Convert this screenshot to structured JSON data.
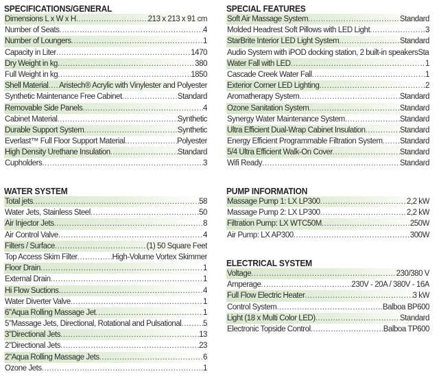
{
  "colors": {
    "highlight": "#d8e6cc",
    "text": "#2a2a2a"
  },
  "sections": [
    {
      "id": "specifications-general",
      "title": "SPECIFICATIONS/GENERAL",
      "rows": [
        {
          "label": "Dimensions L x W x H",
          "value": "213 x 213 x 91 cm"
        },
        {
          "label": "Number  of  Seats",
          "value": "4"
        },
        {
          "label": "Number of Loungers",
          "value": "1"
        },
        {
          "label": "Capacity in Liter",
          "value": "1470"
        },
        {
          "label": "Dry Weight in kg",
          "value": "380"
        },
        {
          "label": "Full Weight in kg",
          "value": "1850"
        },
        {
          "label": "Shell Material",
          "value": "Aristech® Acrylic with Vinylester and Polyester"
        },
        {
          "label": "Synthetic Maintenance Free Cabinet",
          "value": "Standard"
        },
        {
          "label": "Removable Side Panels",
          "value": "4"
        },
        {
          "label": "Cabinet  Material",
          "value": "Synthetic"
        },
        {
          "label": "Durable Support System",
          "value": "Synthetic"
        },
        {
          "label": "Everlast™  Full Floor Support Material",
          "value": "Polyester"
        },
        {
          "label": "High Density Urethane Insulation",
          "value": "Standard"
        },
        {
          "label": "Cupholders",
          "value": "3"
        }
      ]
    },
    {
      "id": "special-features",
      "title": "SPECIAL FEATURES",
      "rows": [
        {
          "label": "Soft Air Massage System",
          "value": "Standard"
        },
        {
          "label": "Molded Headrest Soft Pillows with LED Light",
          "value": "3"
        },
        {
          "label": "StarBrite Interior LED Light System",
          "value": "Standard"
        },
        {
          "label": "Audio System with iPOD docking station, 2 built-in speakers",
          "value": "Standard"
        },
        {
          "label": "Water Fall with LED",
          "value": "1"
        },
        {
          "label": "Cascade Creek Water Fall",
          "value": "1"
        },
        {
          "label": "Exterior Corner LED Lighting",
          "value": "2"
        },
        {
          "label": "Aromatherapy System",
          "value": "Standard"
        },
        {
          "label": "Ozone Sanitation System",
          "value": "Standard"
        },
        {
          "label": "Synergy Water  Maintenance  System",
          "value": "Standard"
        },
        {
          "label": "Ultra Efficient Dual-Wrap Cabinet Insulation",
          "value": "Standard"
        },
        {
          "label": "Energy Efficient Programmable Filtration System",
          "value": "Standard"
        },
        {
          "label": "5/4 Ultra Efficient Walk-On Cover",
          "value": "Standard"
        },
        {
          "label": "Wifi Ready",
          "value": "Standard"
        }
      ]
    },
    {
      "id": "water-system",
      "title": "WATER SYSTEM",
      "rows": [
        {
          "label": "Total jets",
          "value": "58"
        },
        {
          "label": "Water Jets, Stainless Steel",
          "value": "50"
        },
        {
          "label": "Air Injector Jets",
          "value": "8"
        },
        {
          "label": "Air  Control Valve",
          "value": "4"
        },
        {
          "label": "Filters / Surface",
          "value": "(1) 50 Square Feet"
        },
        {
          "label": "Top Access Skim Filter",
          "value": "High-Volume Vortex Skimmer"
        },
        {
          "label": "Floor Drain",
          "value": "1"
        },
        {
          "label": "External Drain",
          "value": "1"
        },
        {
          "label": "Hi Flow Suctions",
          "value": "4"
        },
        {
          "label": "Water Diverter Valve",
          "value": "1"
        },
        {
          "label": "6\"Aqua Rolling Massage Jet",
          "value": "1"
        },
        {
          "label": "5\"Massage Jets, Directional, Rotational and Pulsational",
          "value": "5"
        },
        {
          "label": "3\"Directional Jets",
          "value": "13"
        },
        {
          "label": "2\"Directional Jets",
          "value": "23"
        },
        {
          "label": "2\"Aqua Rolling Massage Jets",
          "value": "6"
        },
        {
          "label": "Ozone Jets",
          "value": "1"
        }
      ]
    },
    {
      "id": "pump-information",
      "title": "PUMP INFORMATION",
      "rows": [
        {
          "label": "Massage Pump 1: LX LP300",
          "value": "2,2 kW"
        },
        {
          "label": "Massage Pump 2: LX LP300",
          "value": "2,2 kW"
        },
        {
          "label": "Filtration  Pump:  LX  WTC50M",
          "value": "250W"
        },
        {
          "label": "Air Pump: LX AP300",
          "value": "300W"
        }
      ]
    },
    {
      "id": "electrical-system",
      "title": "ELECTRICAL  SYSTEM",
      "rows": [
        {
          "label": "Voltage",
          "value": "230/380 V"
        },
        {
          "label": "Amperage",
          "value": "230V - 20A / 380V - 16A"
        },
        {
          "label": "Full Flow Electric Heater",
          "value": "3 kW"
        },
        {
          "label": "Control System",
          "value": "Balboa BP600"
        },
        {
          "label": "Light (18 x Multi Color LED)",
          "value": "Standard"
        },
        {
          "label": "Electronic Topside Control",
          "value": "Balboa TP600"
        }
      ]
    }
  ]
}
